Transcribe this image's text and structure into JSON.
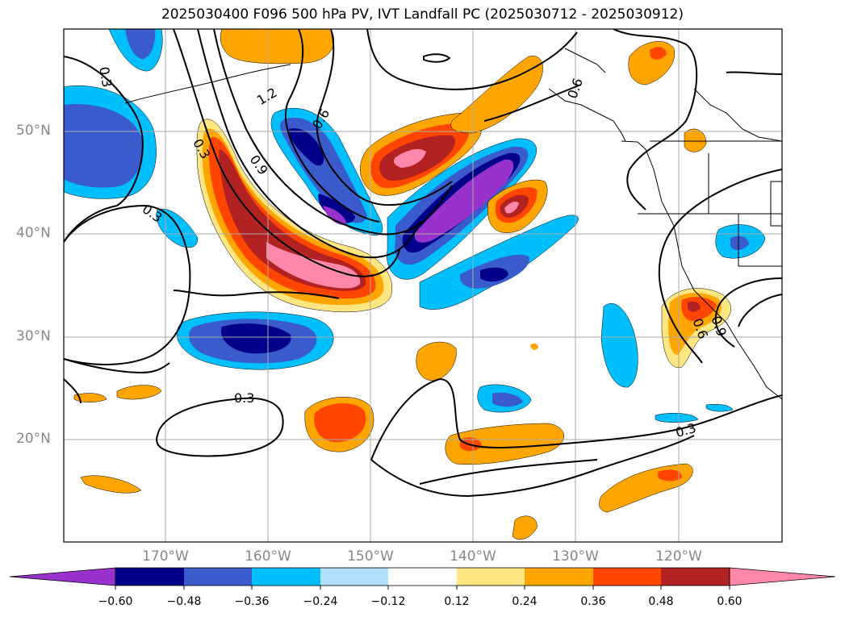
{
  "title": "2025030400 F096 500 hPa PV, IVT Landfall PC (2025030712 - 2025030912)",
  "lat_ticks": [
    "50°N",
    "40°N",
    "30°N",
    "20°N"
  ],
  "lon_ticks": [
    "170°W",
    "160°W",
    "150°W",
    "140°W",
    "130°W",
    "120°W"
  ],
  "contour_labels": [
    "0.3",
    "1.2",
    "0.6",
    "0.3",
    "0.9",
    "0.3",
    "0.6",
    "0.3",
    "0.3",
    "0.6",
    "0.9"
  ],
  "colorbar": {
    "ticks": [
      "−0.60",
      "−0.48",
      "−0.36",
      "−0.24",
      "−0.12",
      "0.12",
      "0.24",
      "0.36",
      "0.48",
      "0.60"
    ],
    "colors": [
      "#9932cc",
      "#00008b",
      "#3a5bcc",
      "#00bfff",
      "#b0e0fa",
      "#ffffff",
      "#ffe680",
      "#ffa500",
      "#ff4500",
      "#b22222",
      "#ff88aa"
    ]
  },
  "chart_data": {
    "type": "map",
    "fields": [
      "500 hPa PV (contours)",
      "IVT Landfall PC (shaded)"
    ],
    "lat_range": [
      10,
      60
    ],
    "lon_range": [
      -180,
      -110
    ],
    "contour_levels": [
      0.3,
      0.6,
      0.9,
      1.2
    ],
    "shading_levels": [
      -0.6,
      -0.48,
      -0.36,
      -0.24,
      -0.12,
      0.12,
      0.24,
      0.36,
      0.48,
      0.6
    ],
    "grid": true
  }
}
